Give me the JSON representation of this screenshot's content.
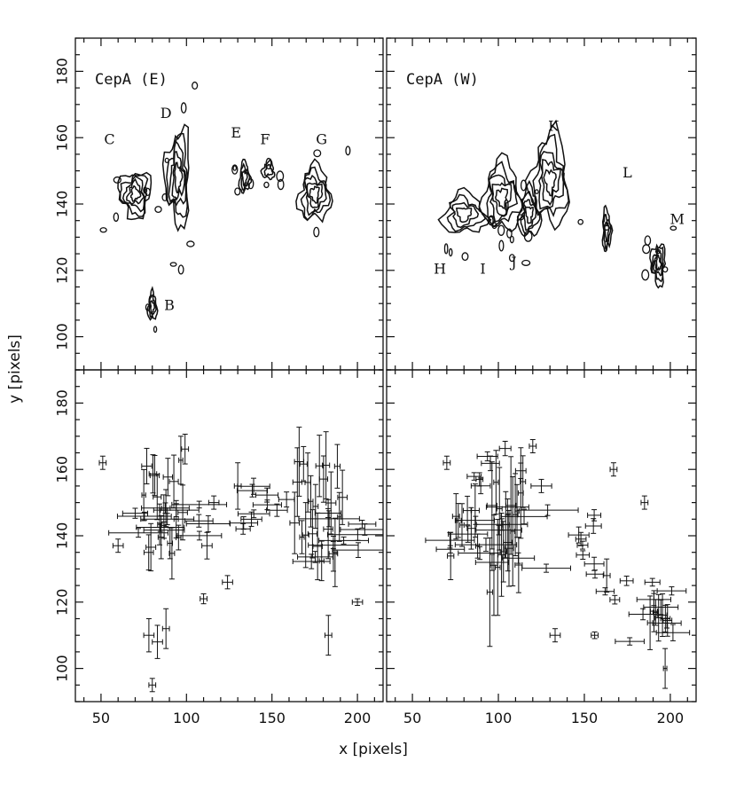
{
  "figure": {
    "xlabel": "x [pixels]",
    "ylabel": "y [pixels]"
  },
  "chart_data": [
    {
      "type": "contour",
      "panel": "top-left",
      "title": "CepA (E)",
      "xlim": [
        35,
        215
      ],
      "ylim": [
        90,
        190
      ],
      "xticks": [
        50,
        100,
        150,
        200
      ],
      "yticks": [
        100,
        120,
        140,
        160,
        180
      ],
      "show_x_tick_labels": false,
      "show_y_tick_labels": true,
      "features": [
        {
          "label": "B",
          "x": 80,
          "y": 109,
          "w": 5,
          "h": 8,
          "levels": 3
        },
        {
          "label": "C",
          "x": 70,
          "y": 143,
          "w": 18,
          "h": 14,
          "levels": 5
        },
        {
          "label": "D",
          "x": 95,
          "y": 148,
          "w": 14,
          "h": 28,
          "levels": 5
        },
        {
          "label": "E",
          "x": 134,
          "y": 148,
          "w": 6,
          "h": 9,
          "levels": 3
        },
        {
          "label": "F",
          "x": 148,
          "y": 150,
          "w": 7,
          "h": 5,
          "levels": 2
        },
        {
          "label": "G",
          "x": 175,
          "y": 143,
          "w": 18,
          "h": 16,
          "levels": 5
        }
      ],
      "labels": [
        {
          "text": "B",
          "x": 90,
          "y": 108
        },
        {
          "text": "C",
          "x": 55,
          "y": 158
        },
        {
          "text": "D",
          "x": 88,
          "y": 166
        },
        {
          "text": "E",
          "x": 129,
          "y": 160
        },
        {
          "text": "F",
          "x": 146,
          "y": 158
        },
        {
          "text": "G",
          "x": 179,
          "y": 158
        }
      ]
    },
    {
      "type": "contour",
      "panel": "top-right",
      "title": "CepA (W)",
      "xlim": [
        35,
        215
      ],
      "ylim": [
        90,
        190
      ],
      "xticks": [
        50,
        100,
        150,
        200
      ],
      "yticks": [
        100,
        120,
        140,
        160,
        180
      ],
      "show_x_tick_labels": false,
      "show_y_tick_labels": false,
      "features": [
        {
          "label": "H",
          "x": 80,
          "y": 137,
          "w": 24,
          "h": 12,
          "levels": 4
        },
        {
          "label": "I",
          "x": 102,
          "y": 142,
          "w": 22,
          "h": 20,
          "levels": 5
        },
        {
          "label": "J",
          "x": 118,
          "y": 137,
          "w": 12,
          "h": 14,
          "levels": 4
        },
        {
          "label": "K",
          "x": 130,
          "y": 147,
          "w": 22,
          "h": 26,
          "levels": 5
        },
        {
          "label": "L",
          "x": 163,
          "y": 132,
          "w": 5,
          "h": 12,
          "levels": 3
        },
        {
          "label": "M",
          "x": 193,
          "y": 122,
          "w": 8,
          "h": 12,
          "levels": 4
        }
      ],
      "labels": [
        {
          "text": "H",
          "x": 66,
          "y": 119
        },
        {
          "text": "I",
          "x": 91,
          "y": 119
        },
        {
          "text": "J",
          "x": 109,
          "y": 121
        },
        {
          "text": "K",
          "x": 132,
          "y": 162
        },
        {
          "text": "L",
          "x": 175,
          "y": 148
        },
        {
          "text": "M",
          "x": 204,
          "y": 134
        }
      ]
    },
    {
      "type": "errorbar",
      "panel": "bottom-left",
      "xlim": [
        35,
        215
      ],
      "ylim": [
        90,
        190
      ],
      "xticks": [
        50,
        100,
        150,
        200
      ],
      "yticks": [
        100,
        120,
        140,
        160,
        180
      ],
      "show_x_tick_labels": true,
      "show_y_tick_labels": true,
      "columns": [
        {
          "x": [
            75,
            100
          ],
          "y": [
            132,
            168
          ],
          "n": 20,
          "yerr": 6
        },
        {
          "x": [
            163,
            192
          ],
          "y": [
            132,
            168
          ],
          "n": 22,
          "yerr": 8
        }
      ],
      "rows": [
        {
          "x": [
            55,
            115
          ],
          "y": [
            140,
            150
          ],
          "n": 12,
          "xerr": 14
        },
        {
          "x": [
            120,
            160
          ],
          "y": [
            142,
            156
          ],
          "n": 10,
          "xerr": 8
        },
        {
          "x": [
            170,
            205
          ],
          "y": [
            132,
            148
          ],
          "n": 10,
          "xerr": 14
        }
      ],
      "points": [
        {
          "x": 51,
          "y": 162,
          "xerr": 2,
          "yerr": 2
        },
        {
          "x": 80,
          "y": 95,
          "xerr": 2,
          "yerr": 2
        },
        {
          "x": 110,
          "y": 121,
          "xerr": 2,
          "yerr": 1.5
        },
        {
          "x": 124,
          "y": 126,
          "xerr": 3,
          "yerr": 2
        },
        {
          "x": 200,
          "y": 120,
          "xerr": 3,
          "yerr": 1
        },
        {
          "x": 78,
          "y": 110,
          "xerr": 3,
          "yerr": 5
        },
        {
          "x": 83,
          "y": 108,
          "xerr": 3,
          "yerr": 5
        },
        {
          "x": 88,
          "y": 112,
          "xerr": 2,
          "yerr": 6
        },
        {
          "x": 116,
          "y": 150,
          "xerr": 3,
          "yerr": 2
        },
        {
          "x": 130,
          "y": 155,
          "xerr": 2,
          "yerr": 7
        },
        {
          "x": 112,
          "y": 137,
          "xerr": 3,
          "yerr": 4
        },
        {
          "x": 60,
          "y": 137,
          "xerr": 3,
          "yerr": 2
        },
        {
          "x": 183,
          "y": 110,
          "xerr": 2,
          "yerr": 6
        }
      ]
    },
    {
      "type": "errorbar",
      "panel": "bottom-right",
      "xlim": [
        35,
        215
      ],
      "ylim": [
        90,
        190
      ],
      "xticks": [
        50,
        100,
        150,
        200
      ],
      "yticks": [
        100,
        120,
        140,
        160,
        180
      ],
      "show_x_tick_labels": true,
      "show_y_tick_labels": false,
      "columns": [
        {
          "x": [
            95,
            115
          ],
          "y": [
            120,
            160
          ],
          "n": 18,
          "yerr": 12
        },
        {
          "x": [
            72,
            90
          ],
          "y": [
            130,
            148
          ],
          "n": 8,
          "yerr": 6
        },
        {
          "x": [
            188,
            200
          ],
          "y": [
            112,
            122
          ],
          "n": 7,
          "yerr": 6
        }
      ],
      "rows": [
        {
          "x": [
            65,
            130
          ],
          "y": [
            130,
            150
          ],
          "n": 14,
          "xerr": 14
        },
        {
          "x": [
            80,
            120
          ],
          "y": [
            155,
            168
          ],
          "n": 6,
          "xerr": 6
        },
        {
          "x": [
            140,
            175
          ],
          "y": [
            120,
            148
          ],
          "n": 10,
          "xerr": 5
        },
        {
          "x": [
            175,
            205
          ],
          "y": [
            108,
            128
          ],
          "n": 8,
          "xerr": 8
        }
      ],
      "points": [
        {
          "x": 70,
          "y": 162,
          "xerr": 2,
          "yerr": 2
        },
        {
          "x": 89,
          "y": 157,
          "xerr": 2,
          "yerr": 2
        },
        {
          "x": 133,
          "y": 110,
          "xerr": 3,
          "yerr": 2
        },
        {
          "x": 156,
          "y": 110,
          "xerr": 2,
          "yerr": 1
        },
        {
          "x": 167,
          "y": 160,
          "xerr": 2,
          "yerr": 2
        },
        {
          "x": 185,
          "y": 150,
          "xerr": 2,
          "yerr": 2
        },
        {
          "x": 197,
          "y": 100,
          "xerr": 1,
          "yerr": 6
        },
        {
          "x": 120,
          "y": 167,
          "xerr": 2,
          "yerr": 2
        },
        {
          "x": 125,
          "y": 155,
          "xerr": 6,
          "yerr": 2
        },
        {
          "x": 148,
          "y": 139,
          "xerr": 3,
          "yerr": 2
        },
        {
          "x": 163,
          "y": 128,
          "xerr": 2,
          "yerr": 5
        }
      ]
    }
  ]
}
